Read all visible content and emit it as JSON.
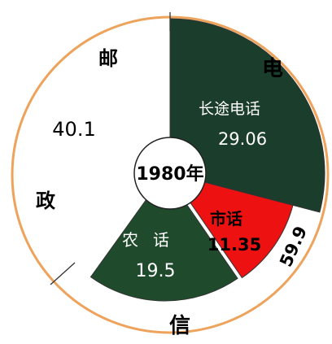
{
  "chart_data": {
    "type": "pie",
    "center_label": "1980年",
    "slices": [
      {
        "label": "长途电话",
        "value": 29.06,
        "color": "#1b3d2b",
        "text_color": "#ffffff"
      },
      {
        "label": "市话",
        "value": 11.35,
        "color": "#ee1111",
        "text_color": "#000000"
      },
      {
        "label": "农话",
        "value": 19.5,
        "color": "#1f4b2c",
        "text_color": "#ffffff"
      },
      {
        "label": "邮政",
        "value": 40.1,
        "color": "#ffffff",
        "text_color": "#000000"
      }
    ],
    "groups": [
      {
        "label": "电",
        "value_text": "59.9"
      },
      {
        "label": "信"
      }
    ],
    "ring_color": "#eda35b",
    "edge_color": "#333333"
  }
}
